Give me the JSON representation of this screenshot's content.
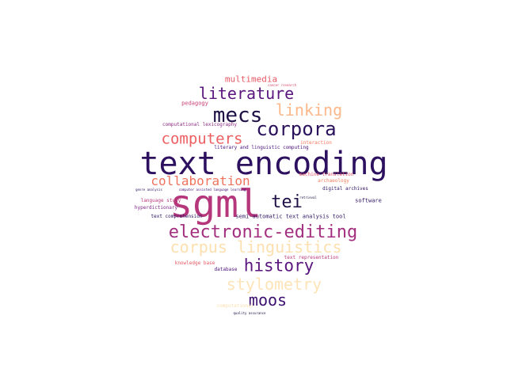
{
  "words": [
    {
      "text": "text encoding",
      "color": "#2d1160"
    },
    {
      "text": "sgml",
      "color": "#b5367a"
    },
    {
      "text": "electronic-editing",
      "color": "#a32f7f"
    },
    {
      "text": "corpus linguistics",
      "color": "#fde0b0"
    },
    {
      "text": "stylometry",
      "color": "#fde4b8"
    },
    {
      "text": "history",
      "color": "#5a167e"
    },
    {
      "text": "moos",
      "color": "#3b0f70"
    },
    {
      "text": "corpora",
      "color": "#2a115c"
    },
    {
      "text": "mecs",
      "color": "#1e0f45"
    },
    {
      "text": "literature",
      "color": "#5a167e"
    },
    {
      "text": "linking",
      "color": "#fcb88a"
    },
    {
      "text": "computers",
      "color": "#ec5f62"
    },
    {
      "text": "collaboration",
      "color": "#f0735d"
    },
    {
      "text": "tei",
      "color": "#1f0f47"
    },
    {
      "text": "multimedia",
      "color": "#e55964"
    },
    {
      "text": "pedagogy",
      "color": "#c83e73"
    },
    {
      "text": "cancer research",
      "color": "#d94a6a"
    },
    {
      "text": "computational lexicography",
      "color": "#8c2981"
    },
    {
      "text": "interaction",
      "color": "#f4775c"
    },
    {
      "text": "literary and linguistic computing",
      "color": "#4a1079"
    },
    {
      "text": "machine translation",
      "color": "#e0546a"
    },
    {
      "text": "archaeology",
      "color": "#f47c5e"
    },
    {
      "text": "digital archives",
      "color": "#2c115f"
    },
    {
      "text": "genre analysis",
      "color": "#2c115f"
    },
    {
      "text": "computer assisted language learning",
      "color": "#3b0f70"
    },
    {
      "text": "language study",
      "color": "#b73779"
    },
    {
      "text": "hyperdictionary",
      "color": "#7a2482"
    },
    {
      "text": "retrieval",
      "color": "#1a1042"
    },
    {
      "text": "software",
      "color": "#2c115f"
    },
    {
      "text": "text comprehension",
      "color": "#2c115f"
    },
    {
      "text": "semi-automatic text analysis tool",
      "color": "#2c115f"
    },
    {
      "text": "text representation",
      "color": "#b73779"
    },
    {
      "text": "knowledge base",
      "color": "#e55964"
    },
    {
      "text": "database",
      "color": "#4a1079"
    },
    {
      "text": "quality assurance",
      "color": "#1a1042"
    },
    {
      "text": "computational",
      "color": "#fde0b0"
    }
  ]
}
